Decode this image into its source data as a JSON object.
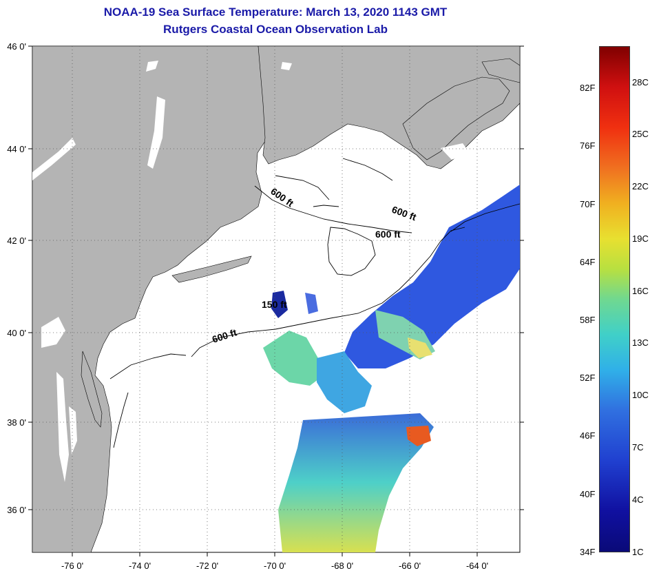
{
  "title": {
    "line1": "NOAA-19 Sea Surface Temperature:  March 13, 2020 1143 GMT",
    "line2": "Rutgers Coastal Ocean Observation Lab"
  },
  "axes": {
    "lat_labels": [
      "46 0'",
      "44 0'",
      "42 0'",
      "40 0'",
      "38 0'",
      "36 0'"
    ],
    "lon_labels": [
      "-76 0'",
      "-74 0'",
      "-72 0'",
      "-70 0'",
      "-68 0'",
      "-66 0'",
      "-64 0'"
    ]
  },
  "contours": {
    "label_600_a": "600 ft",
    "label_600_b": "600 ft",
    "label_600_c": "600 ft",
    "label_600_d": "600 ft",
    "label_150": "150 ft"
  },
  "colorbar": {
    "fahrenheit": [
      "82F",
      "76F",
      "70F",
      "64F",
      "58F",
      "52F",
      "46F",
      "40F",
      "34F"
    ],
    "celsius": [
      "28C",
      "25C",
      "22C",
      "19C",
      "16C",
      "13C",
      "10C",
      "7C",
      "4C",
      "1C"
    ]
  },
  "colors": {
    "title": "#1a1aa8",
    "land": "#b4b4b4",
    "ocean": "#ffffff"
  }
}
